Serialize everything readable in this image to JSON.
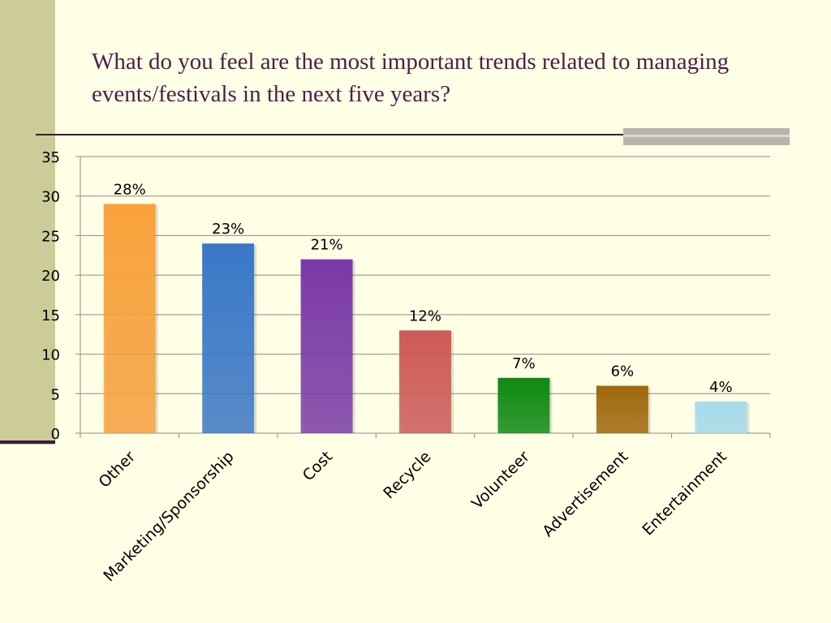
{
  "slide": {
    "title": "What do you feel are the most important trends related to managing events/festivals in the next five years?"
  },
  "chart_data": {
    "type": "bar",
    "categories": [
      "Other",
      "Marketing/Sponsorship",
      "Cost",
      "Recycle",
      "Volunteer",
      "Advertisement",
      "Entertainment"
    ],
    "values": [
      29,
      24,
      22,
      13,
      7,
      6,
      4
    ],
    "data_labels": [
      "28%",
      "23%",
      "21%",
      "12%",
      "7%",
      "6%",
      "4%"
    ],
    "colors": [
      "#f9a23c",
      "#3a78c8",
      "#7b3aa8",
      "#cf5a58",
      "#0f8a12",
      "#a0680a",
      "#a6dcee"
    ],
    "ylim": [
      0,
      35
    ],
    "yticks": [
      0,
      5,
      10,
      15,
      20,
      25,
      30,
      35
    ],
    "grid": true,
    "legend": "none",
    "xlabel": "",
    "ylabel": ""
  }
}
